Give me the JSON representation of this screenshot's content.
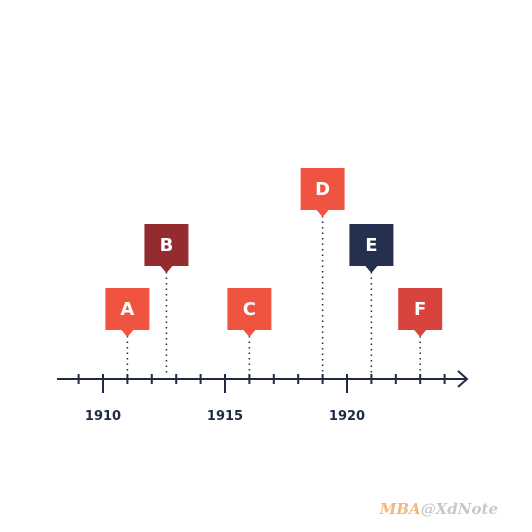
{
  "timeline": {
    "ticks": [
      1909,
      1910,
      1911,
      1912,
      1913,
      1914,
      1915,
      1916,
      1917,
      1918,
      1919,
      1920,
      1921,
      1922,
      1923,
      1924
    ],
    "labeled_ticks": [
      1910,
      1915,
      1920
    ],
    "events": [
      {
        "label": "A",
        "year": 1911,
        "color": "#ef5441"
      },
      {
        "label": "B",
        "year": 1912.6,
        "color": "#942b30"
      },
      {
        "label": "C",
        "year": 1916,
        "color": "#ef5441"
      },
      {
        "label": "D",
        "year": 1919,
        "color": "#ef5441"
      },
      {
        "label": "E",
        "year": 1921,
        "color": "#25304f"
      },
      {
        "label": "F",
        "year": 1923,
        "color": "#d8443d"
      }
    ]
  },
  "watermark": {
    "brand": "MBA",
    "handle": "@XdNote"
  }
}
